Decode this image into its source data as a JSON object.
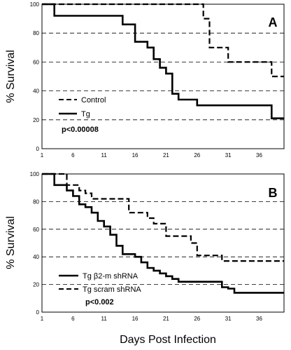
{
  "chart_data": [
    {
      "type": "line",
      "panel_label": "A",
      "ylabel": "% Survival",
      "xlabel": "",
      "ylim": [
        0,
        100
      ],
      "xlim": [
        1,
        40
      ],
      "x_ticks": [
        "1",
        "6",
        "11",
        "16",
        "21",
        "26",
        "31",
        "36"
      ],
      "y_ticks": [
        "0",
        "20",
        "40",
        "60",
        "80",
        "100"
      ],
      "grid": "horizontal dashed at 20, 40, 60, 80",
      "legend_position": "lower-left",
      "annotation": "p<0.00008",
      "series": [
        {
          "name": "Control",
          "style": "dashed",
          "x": [
            1,
            26,
            27,
            28,
            30,
            31,
            37,
            38,
            40
          ],
          "y": [
            100,
            100,
            90,
            70,
            70,
            60,
            60,
            50,
            50
          ]
        },
        {
          "name": "Tg",
          "style": "solid",
          "x": [
            1,
            3,
            13,
            14,
            16,
            17,
            18,
            19,
            20,
            21,
            22,
            23,
            25,
            26,
            37,
            38,
            40
          ],
          "y": [
            100,
            92,
            92,
            86,
            74,
            74,
            70,
            62,
            56,
            52,
            38,
            34,
            34,
            30,
            30,
            21,
            21
          ]
        }
      ]
    },
    {
      "type": "line",
      "panel_label": "B",
      "ylabel": "% Survival",
      "xlabel": "Days Post Infection",
      "ylim": [
        0,
        100
      ],
      "xlim": [
        1,
        40
      ],
      "x_ticks": [
        "1",
        "6",
        "11",
        "16",
        "21",
        "26",
        "31",
        "36"
      ],
      "y_ticks": [
        "0",
        "20",
        "40",
        "60",
        "80",
        "100"
      ],
      "grid": "horizontal dashed at 20, 40, 60, 80",
      "legend_position": "lower-left",
      "annotation": "p<0.002",
      "series": [
        {
          "name": "Tg β2-m shRNA",
          "style": "solid",
          "x": [
            1,
            3,
            4,
            5,
            6,
            7,
            8,
            9,
            10,
            11,
            12,
            13,
            14,
            15,
            16,
            17,
            18,
            19,
            20,
            21,
            22,
            23,
            29,
            30,
            31,
            32,
            40
          ],
          "y": [
            100,
            92,
            92,
            88,
            84,
            78,
            76,
            72,
            66,
            62,
            56,
            48,
            42,
            42,
            40,
            36,
            32,
            30,
            28,
            26,
            24,
            22,
            22,
            18,
            17,
            14,
            14
          ]
        },
        {
          "name": "Tg scram shRNA",
          "style": "dashed",
          "x": [
            1,
            3,
            5,
            6,
            7,
            8,
            9,
            14,
            15,
            17,
            18,
            19,
            20,
            21,
            25,
            26,
            29,
            30,
            40
          ],
          "y": [
            100,
            100,
            92,
            92,
            88,
            86,
            82,
            82,
            72,
            72,
            68,
            64,
            64,
            55,
            50,
            41,
            41,
            37,
            37
          ]
        }
      ]
    }
  ]
}
